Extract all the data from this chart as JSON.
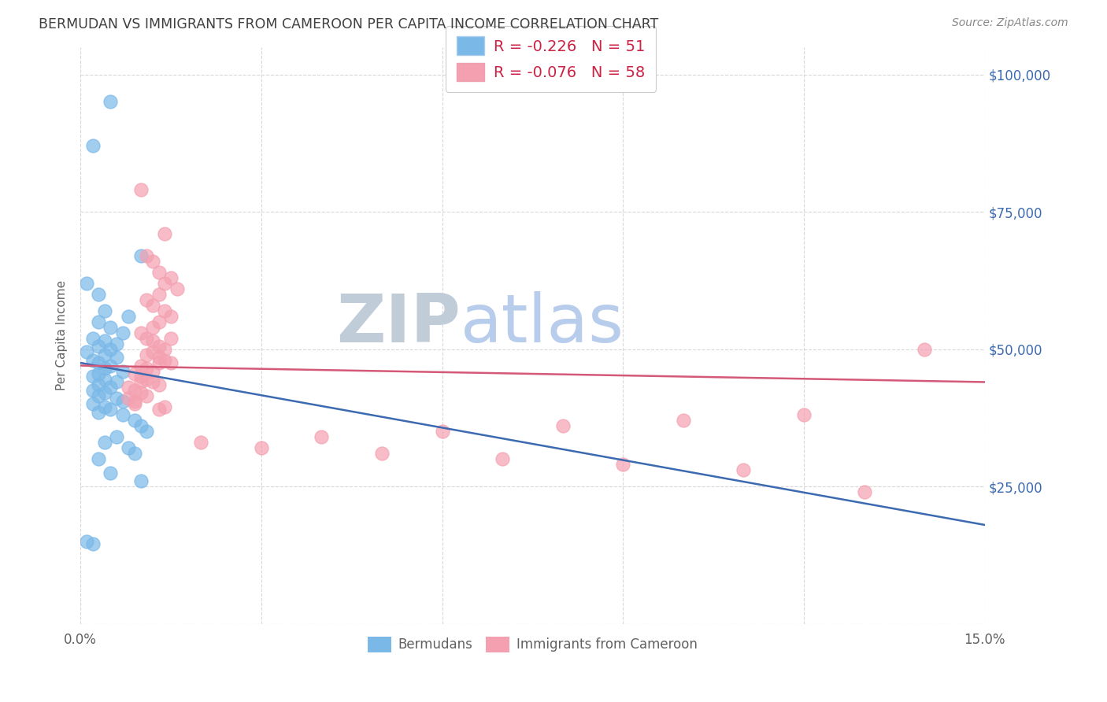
{
  "title": "BERMUDAN VS IMMIGRANTS FROM CAMEROON PER CAPITA INCOME CORRELATION CHART",
  "source": "Source: ZipAtlas.com",
  "ylabel": "Per Capita Income",
  "yticks": [
    0,
    25000,
    50000,
    75000,
    100000
  ],
  "ytick_labels": [
    "",
    "$25,000",
    "$50,000",
    "$75,000",
    "$100,000"
  ],
  "xticks": [
    0.0,
    0.03,
    0.06,
    0.09,
    0.12,
    0.15
  ],
  "xtick_labels": [
    "0.0%",
    "",
    "",
    "",
    "",
    "15.0%"
  ],
  "legend_r_blue": "R = -0.226",
  "legend_n_blue": "N = 51",
  "legend_r_pink": "R = -0.076",
  "legend_n_pink": "N = 58",
  "legend_label_blue": "Bermudans",
  "legend_label_pink": "Immigrants from Cameroon",
  "blue_color": "#7ab8e8",
  "pink_color": "#f4a0b0",
  "blue_line_color": "#3c6ab0",
  "pink_line_color": "#d45878",
  "watermark_zip": "ZIP",
  "watermark_atlas": "atlas",
  "watermark_color_zip": "#c0ccd8",
  "watermark_color_atlas": "#b8ccec",
  "background_color": "#ffffff",
  "grid_color": "#d8d8d8",
  "title_color": "#404040",
  "axis_color": "#606060",
  "right_label_color": "#3c6ab0",
  "blue_scatter_x": [
    0.005,
    0.002,
    0.01,
    0.001,
    0.003,
    0.004,
    0.008,
    0.003,
    0.005,
    0.007,
    0.002,
    0.004,
    0.006,
    0.003,
    0.005,
    0.001,
    0.004,
    0.006,
    0.002,
    0.003,
    0.005,
    0.004,
    0.007,
    0.003,
    0.002,
    0.004,
    0.006,
    0.003,
    0.005,
    0.002,
    0.004,
    0.003,
    0.006,
    0.007,
    0.002,
    0.004,
    0.005,
    0.003,
    0.007,
    0.009,
    0.01,
    0.011,
    0.006,
    0.004,
    0.008,
    0.009,
    0.003,
    0.001,
    0.002,
    0.01,
    0.005
  ],
  "blue_scatter_y": [
    95000,
    87000,
    67000,
    62000,
    60000,
    57000,
    56000,
    55000,
    54000,
    53000,
    52000,
    51500,
    51000,
    50500,
    50000,
    49500,
    49000,
    48500,
    48000,
    47500,
    47000,
    46500,
    46000,
    45500,
    45000,
    44500,
    44000,
    43500,
    43000,
    42500,
    42000,
    41500,
    41000,
    40500,
    40000,
    39500,
    39000,
    38500,
    38000,
    37000,
    36000,
    35000,
    34000,
    33000,
    32000,
    31000,
    30000,
    15000,
    14500,
    26000,
    27500
  ],
  "pink_scatter_x": [
    0.01,
    0.014,
    0.011,
    0.012,
    0.013,
    0.015,
    0.014,
    0.016,
    0.013,
    0.011,
    0.012,
    0.014,
    0.015,
    0.013,
    0.012,
    0.01,
    0.011,
    0.012,
    0.013,
    0.014,
    0.012,
    0.011,
    0.013,
    0.014,
    0.015,
    0.01,
    0.011,
    0.012,
    0.013,
    0.009,
    0.01,
    0.011,
    0.012,
    0.013,
    0.008,
    0.009,
    0.01,
    0.011,
    0.008,
    0.009,
    0.01,
    0.009,
    0.014,
    0.013,
    0.015,
    0.14,
    0.12,
    0.1,
    0.08,
    0.06,
    0.04,
    0.02,
    0.03,
    0.05,
    0.07,
    0.09,
    0.11,
    0.13
  ],
  "pink_scatter_y": [
    79000,
    71000,
    67000,
    66000,
    64000,
    63000,
    62000,
    61000,
    60000,
    59000,
    58000,
    57000,
    56000,
    55000,
    54000,
    53000,
    52000,
    51500,
    50500,
    50000,
    49500,
    49000,
    48500,
    48000,
    47500,
    47000,
    46500,
    46000,
    47500,
    45500,
    45000,
    44500,
    44000,
    43500,
    43000,
    42500,
    42000,
    41500,
    41000,
    40500,
    44000,
    40000,
    39500,
    39000,
    52000,
    50000,
    38000,
    37000,
    36000,
    35000,
    34000,
    33000,
    32000,
    31000,
    30000,
    29000,
    28000,
    24000
  ],
  "blue_line_x": [
    0.0,
    0.15
  ],
  "blue_line_y": [
    47500,
    18000
  ],
  "pink_line_x": [
    0.0,
    0.15
  ],
  "pink_line_y": [
    47000,
    44000
  ],
  "xmin": 0.0,
  "xmax": 0.15,
  "ymin": 0,
  "ymax": 105000
}
